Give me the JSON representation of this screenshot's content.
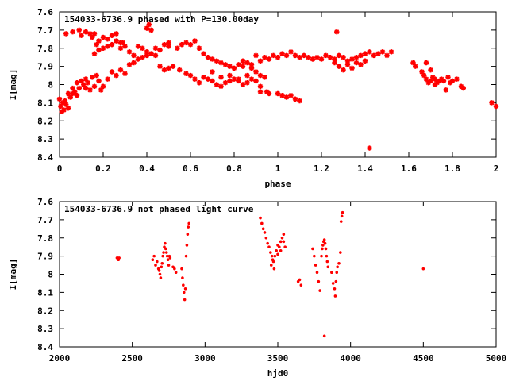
{
  "colors": {
    "marker": "#ff0000",
    "axis": "#000000",
    "background": "#ffffff"
  },
  "chart_data": [
    {
      "type": "scatter",
      "title": "154033-6736.9 phased with P=130.00day",
      "xlabel": "phase",
      "ylabel": "I[mag]",
      "xlim": [
        0,
        2
      ],
      "ylim": [
        7.6,
        8.4
      ],
      "y_inverted": true,
      "x_ticks": [
        "0",
        "0.2",
        "0.4",
        "0.6",
        "0.8",
        "1",
        "1.2",
        "1.4",
        "1.6",
        "1.8",
        "2"
      ],
      "y_ticks": [
        "7.6",
        "7.7",
        "7.8",
        "7.9",
        "8",
        "8.1",
        "8.2",
        "8.3",
        "8.4"
      ],
      "grid": false,
      "marker": "star",
      "points": [
        [
          0.0,
          8.08
        ],
        [
          0.005,
          8.12
        ],
        [
          0.01,
          8.15
        ],
        [
          0.015,
          8.1
        ],
        [
          0.02,
          8.14
        ],
        [
          0.025,
          8.09
        ],
        [
          0.03,
          8.11
        ],
        [
          0.04,
          8.13
        ],
        [
          0.05,
          8.07
        ],
        [
          0.06,
          8.05
        ],
        [
          0.07,
          8.04
        ],
        [
          0.08,
          8.06
        ],
        [
          0.09,
          8.02
        ],
        [
          0.1,
          7.98
        ],
        [
          0.11,
          8.0
        ],
        [
          0.12,
          7.97
        ],
        [
          0.13,
          7.99
        ],
        [
          0.15,
          7.96
        ],
        [
          0.17,
          7.95
        ],
        [
          0.19,
          8.03
        ],
        [
          0.2,
          8.01
        ],
        [
          0.22,
          7.97
        ],
        [
          0.24,
          7.93
        ],
        [
          0.26,
          7.95
        ],
        [
          0.28,
          7.92
        ],
        [
          0.3,
          7.94
        ],
        [
          0.32,
          7.89
        ],
        [
          0.34,
          7.88
        ],
        [
          0.36,
          7.86
        ],
        [
          0.38,
          7.85
        ],
        [
          0.4,
          7.84
        ],
        [
          0.42,
          7.83
        ],
        [
          0.44,
          7.84
        ],
        [
          0.46,
          7.9
        ],
        [
          0.48,
          7.92
        ],
        [
          0.5,
          7.91
        ],
        [
          0.52,
          7.9
        ],
        [
          0.55,
          7.92
        ],
        [
          0.58,
          7.94
        ],
        [
          0.6,
          7.95
        ],
        [
          0.62,
          7.97
        ],
        [
          0.64,
          7.99
        ],
        [
          0.66,
          7.96
        ],
        [
          0.68,
          7.97
        ],
        [
          0.7,
          7.98
        ],
        [
          0.72,
          8.0
        ],
        [
          0.74,
          8.01
        ],
        [
          0.76,
          7.99
        ],
        [
          0.78,
          7.98
        ],
        [
          0.8,
          7.97
        ],
        [
          0.82,
          7.98
        ],
        [
          0.84,
          8.0
        ],
        [
          0.86,
          7.99
        ],
        [
          0.88,
          7.97
        ],
        [
          0.9,
          7.98
        ],
        [
          0.92,
          8.01
        ],
        [
          0.95,
          8.04
        ],
        [
          1.0,
          8.05
        ],
        [
          1.02,
          8.06
        ],
        [
          1.04,
          8.07
        ],
        [
          1.06,
          8.06
        ],
        [
          1.08,
          8.08
        ],
        [
          1.1,
          8.09
        ],
        [
          0.03,
          7.72
        ],
        [
          0.06,
          7.71
        ],
        [
          0.09,
          7.7
        ],
        [
          0.1,
          7.73
        ],
        [
          0.12,
          7.71
        ],
        [
          0.14,
          7.72
        ],
        [
          0.15,
          7.74
        ],
        [
          0.16,
          7.72
        ],
        [
          0.17,
          7.78
        ],
        [
          0.18,
          7.76
        ],
        [
          0.2,
          7.74
        ],
        [
          0.22,
          7.75
        ],
        [
          0.24,
          7.73
        ],
        [
          0.26,
          7.72
        ],
        [
          0.28,
          7.8
        ],
        [
          0.29,
          7.77
        ],
        [
          0.3,
          7.79
        ],
        [
          0.32,
          7.82
        ],
        [
          0.34,
          7.84
        ],
        [
          0.36,
          7.79
        ],
        [
          0.38,
          7.8
        ],
        [
          0.4,
          7.82
        ],
        [
          0.42,
          7.83
        ],
        [
          0.44,
          7.8
        ],
        [
          0.46,
          7.81
        ],
        [
          0.5,
          7.79
        ],
        [
          0.54,
          7.8
        ],
        [
          0.56,
          7.78
        ],
        [
          0.58,
          7.77
        ],
        [
          0.6,
          7.78
        ],
        [
          0.62,
          7.76
        ],
        [
          0.64,
          7.8
        ],
        [
          0.66,
          7.83
        ],
        [
          0.68,
          7.85
        ],
        [
          0.7,
          7.86
        ],
        [
          0.72,
          7.87
        ],
        [
          0.74,
          7.88
        ],
        [
          0.76,
          7.89
        ],
        [
          0.78,
          7.9
        ],
        [
          0.8,
          7.91
        ],
        [
          0.82,
          7.89
        ],
        [
          0.84,
          7.9
        ],
        [
          0.86,
          7.88
        ],
        [
          0.88,
          7.89
        ],
        [
          0.9,
          7.84
        ],
        [
          0.92,
          7.87
        ],
        [
          0.94,
          7.85
        ],
        [
          0.96,
          7.86
        ],
        [
          0.98,
          7.84
        ],
        [
          1.0,
          7.85
        ],
        [
          1.02,
          7.83
        ],
        [
          1.04,
          7.84
        ],
        [
          1.06,
          7.82
        ],
        [
          1.08,
          7.84
        ],
        [
          1.1,
          7.85
        ],
        [
          1.12,
          7.84
        ],
        [
          1.14,
          7.85
        ],
        [
          1.16,
          7.86
        ],
        [
          1.18,
          7.85
        ],
        [
          1.2,
          7.86
        ],
        [
          1.22,
          7.84
        ],
        [
          1.24,
          7.85
        ],
        [
          1.26,
          7.86
        ],
        [
          1.27,
          7.71
        ],
        [
          1.28,
          7.84
        ],
        [
          1.3,
          7.85
        ],
        [
          1.32,
          7.87
        ],
        [
          1.34,
          7.86
        ],
        [
          1.36,
          7.85
        ],
        [
          1.38,
          7.84
        ],
        [
          1.4,
          7.83
        ],
        [
          1.42,
          7.82
        ],
        [
          1.44,
          7.84
        ],
        [
          1.46,
          7.83
        ],
        [
          1.48,
          7.82
        ],
        [
          1.5,
          7.84
        ],
        [
          1.52,
          7.82
        ],
        [
          0.16,
          7.83
        ],
        [
          0.18,
          7.81
        ],
        [
          0.2,
          7.8
        ],
        [
          0.22,
          7.79
        ],
        [
          0.24,
          7.78
        ],
        [
          0.26,
          7.76
        ],
        [
          0.28,
          7.77
        ],
        [
          0.4,
          7.69
        ],
        [
          0.41,
          7.67
        ],
        [
          0.42,
          7.7
        ],
        [
          0.48,
          7.78
        ],
        [
          0.5,
          7.77
        ],
        [
          0.84,
          7.87
        ],
        [
          0.88,
          7.91
        ],
        [
          0.9,
          7.93
        ],
        [
          0.92,
          7.95
        ],
        [
          0.94,
          7.96
        ],
        [
          1.26,
          7.88
        ],
        [
          1.28,
          7.9
        ],
        [
          1.3,
          7.92
        ],
        [
          1.32,
          7.89
        ],
        [
          1.34,
          7.91
        ],
        [
          1.36,
          7.88
        ],
        [
          1.38,
          7.89
        ],
        [
          1.4,
          7.87
        ],
        [
          0.04,
          8.05
        ],
        [
          0.06,
          8.02
        ],
        [
          0.08,
          7.99
        ],
        [
          0.12,
          8.02
        ],
        [
          0.14,
          8.03
        ],
        [
          0.16,
          8.01
        ],
        [
          0.18,
          7.98
        ],
        [
          0.7,
          7.93
        ],
        [
          0.74,
          7.96
        ],
        [
          0.78,
          7.95
        ],
        [
          0.82,
          7.97
        ],
        [
          0.86,
          7.95
        ],
        [
          0.92,
          8.04
        ],
        [
          0.96,
          8.05
        ],
        [
          1.42,
          8.35
        ],
        [
          1.62,
          7.88
        ],
        [
          1.63,
          7.9
        ],
        [
          1.66,
          7.93
        ],
        [
          1.67,
          7.95
        ],
        [
          1.68,
          7.97
        ],
        [
          1.69,
          7.99
        ],
        [
          1.7,
          7.98
        ],
        [
          1.71,
          7.96
        ],
        [
          1.72,
          7.97
        ],
        [
          1.73,
          7.99
        ],
        [
          1.74,
          7.98
        ],
        [
          1.75,
          7.97
        ],
        [
          1.76,
          7.98
        ],
        [
          1.78,
          7.96
        ],
        [
          1.79,
          7.99
        ],
        [
          1.8,
          7.98
        ],
        [
          1.82,
          7.97
        ],
        [
          1.84,
          8.01
        ],
        [
          1.85,
          8.02
        ],
        [
          1.68,
          7.88
        ],
        [
          1.7,
          7.92
        ],
        [
          1.72,
          8.0
        ],
        [
          1.77,
          8.03
        ],
        [
          1.98,
          8.1
        ],
        [
          2.0,
          8.12
        ]
      ]
    },
    {
      "type": "scatter",
      "title": "154033-6736.9 not phased light curve",
      "xlabel": "hjd0",
      "ylabel": "I[mag]",
      "xlim": [
        2000,
        5000
      ],
      "ylim": [
        7.6,
        8.4
      ],
      "y_inverted": true,
      "x_ticks": [
        "2000",
        "2500",
        "3000",
        "3500",
        "4000",
        "4500",
        "5000"
      ],
      "y_ticks": [
        "7.6",
        "7.7",
        "7.8",
        "7.9",
        "8",
        "8.1",
        "8.2",
        "8.3",
        "8.4"
      ],
      "grid": false,
      "marker": "dot",
      "points": [
        [
          2395,
          7.91
        ],
        [
          2400,
          7.91
        ],
        [
          2405,
          7.92
        ],
        [
          2410,
          7.91
        ],
        [
          2640,
          7.92
        ],
        [
          2650,
          7.9
        ],
        [
          2660,
          7.95
        ],
        [
          2670,
          7.93
        ],
        [
          2680,
          7.97
        ],
        [
          2685,
          7.98
        ],
        [
          2690,
          8.0
        ],
        [
          2695,
          8.02
        ],
        [
          2700,
          7.96
        ],
        [
          2705,
          7.94
        ],
        [
          2710,
          7.9
        ],
        [
          2715,
          7.88
        ],
        [
          2720,
          7.85
        ],
        [
          2725,
          7.83
        ],
        [
          2730,
          7.86
        ],
        [
          2735,
          7.88
        ],
        [
          2740,
          7.9
        ],
        [
          2745,
          7.92
        ],
        [
          2750,
          7.95
        ],
        [
          2755,
          7.9
        ],
        [
          2760,
          7.91
        ],
        [
          2780,
          7.96
        ],
        [
          2790,
          7.97
        ],
        [
          2800,
          7.99
        ],
        [
          2840,
          7.97
        ],
        [
          2845,
          8.02
        ],
        [
          2850,
          8.06
        ],
        [
          2855,
          8.1
        ],
        [
          2860,
          8.14
        ],
        [
          2865,
          8.08
        ],
        [
          2870,
          7.9
        ],
        [
          2875,
          7.84
        ],
        [
          2880,
          7.78
        ],
        [
          2885,
          7.74
        ],
        [
          2890,
          7.72
        ],
        [
          3380,
          7.69
        ],
        [
          3390,
          7.72
        ],
        [
          3400,
          7.75
        ],
        [
          3410,
          7.77
        ],
        [
          3420,
          7.8
        ],
        [
          3430,
          7.83
        ],
        [
          3440,
          7.85
        ],
        [
          3450,
          7.88
        ],
        [
          3460,
          7.9
        ],
        [
          3470,
          7.93
        ],
        [
          3480,
          7.9
        ],
        [
          3490,
          7.87
        ],
        [
          3500,
          7.84
        ],
        [
          3510,
          7.85
        ],
        [
          3520,
          7.82
        ],
        [
          3530,
          7.8
        ],
        [
          3540,
          7.78
        ],
        [
          3550,
          7.85
        ],
        [
          3455,
          7.95
        ],
        [
          3465,
          7.92
        ],
        [
          3475,
          7.97
        ],
        [
          3500,
          7.89
        ],
        [
          3520,
          7.87
        ],
        [
          3540,
          7.82
        ],
        [
          3640,
          8.04
        ],
        [
          3650,
          8.03
        ],
        [
          3660,
          8.06
        ],
        [
          3740,
          7.86
        ],
        [
          3750,
          7.9
        ],
        [
          3760,
          7.95
        ],
        [
          3770,
          7.99
        ],
        [
          3780,
          8.04
        ],
        [
          3790,
          8.09
        ],
        [
          3800,
          7.9
        ],
        [
          3805,
          7.86
        ],
        [
          3810,
          7.84
        ],
        [
          3815,
          7.82
        ],
        [
          3820,
          7.81
        ],
        [
          3825,
          7.83
        ],
        [
          3830,
          7.86
        ],
        [
          3835,
          7.9
        ],
        [
          3840,
          7.93
        ],
        [
          3845,
          7.96
        ],
        [
          3820,
          8.34
        ],
        [
          3870,
          7.99
        ],
        [
          3880,
          8.05
        ],
        [
          3890,
          8.08
        ],
        [
          3895,
          8.12
        ],
        [
          3900,
          8.04
        ],
        [
          3905,
          7.99
        ],
        [
          3910,
          7.96
        ],
        [
          3920,
          7.94
        ],
        [
          3930,
          7.88
        ],
        [
          3935,
          7.71
        ],
        [
          3940,
          7.68
        ],
        [
          3945,
          7.66
        ],
        [
          4500,
          7.97
        ]
      ]
    }
  ]
}
